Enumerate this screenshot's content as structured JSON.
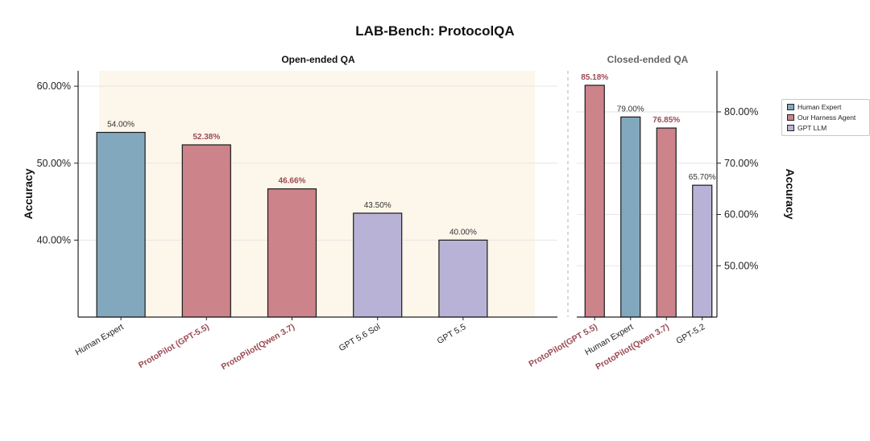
{
  "title": "LAB-Bench: ProtocolQA",
  "colors": {
    "human": "#82a8be",
    "harness": "#cc838a",
    "gpt": "#b8b3d6",
    "highlight_bg": "#fdf6ea",
    "harness_text": "#9c4a55"
  },
  "legend": {
    "items": [
      {
        "label": "Human Expert",
        "group": "human"
      },
      {
        "label": "Our Harness Agent",
        "group": "harness"
      },
      {
        "label": "GPT LLM",
        "group": "gpt"
      }
    ]
  },
  "chart_data": [
    {
      "type": "bar",
      "title": "Open-ended QA",
      "ylabel": "Accuracy",
      "ylim": [
        30,
        62
      ],
      "yticks": [
        40,
        50,
        60
      ],
      "ytick_labels": [
        "40.00%",
        "50.00%",
        "60.00%"
      ],
      "y_axis_side": "left",
      "grid": true,
      "categories": [
        "Human Expert",
        "ProtoPilot (GPT-5.5)",
        "ProtoPilot(Qwen 3.7)",
        "GPT 5.6 Sol",
        "GPT 5.5"
      ],
      "groups": [
        "human",
        "harness",
        "harness",
        "gpt",
        "gpt"
      ],
      "values": [
        54.0,
        52.38,
        46.66,
        43.5,
        40.0
      ],
      "value_labels": [
        "54.00%",
        "52.38%",
        "46.66%",
        "43.50%",
        "40.00%"
      ]
    },
    {
      "type": "bar",
      "title": "Closed-ended QA",
      "ylabel": "Accuracy",
      "ylim": [
        40,
        88
      ],
      "yticks": [
        50,
        60,
        70,
        80
      ],
      "ytick_labels": [
        "50.00%",
        "60.00%",
        "70.00%",
        "80.00%"
      ],
      "y_axis_side": "right",
      "grid": true,
      "categories": [
        "ProtoPilot(GPT 5.5)",
        "Human Expert",
        "ProtoPilot(Qwen 3.7)",
        "GPT-5.2"
      ],
      "groups": [
        "harness",
        "human",
        "harness",
        "gpt"
      ],
      "values": [
        85.18,
        79.0,
        76.85,
        65.7
      ],
      "value_labels": [
        "85.18%",
        "79.00%",
        "76.85%",
        "65.70%"
      ]
    }
  ]
}
